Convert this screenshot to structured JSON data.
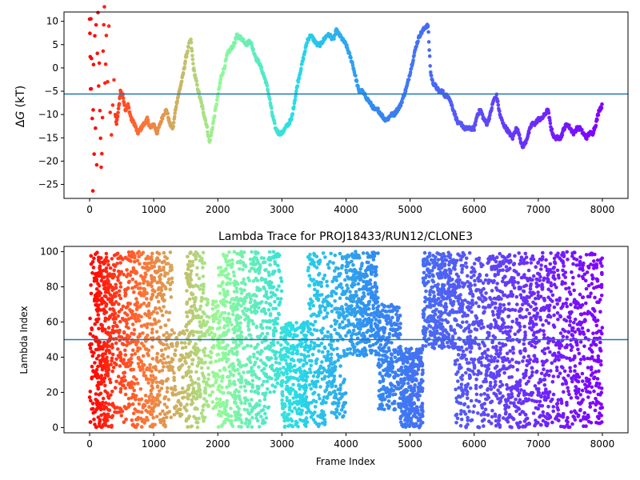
{
  "chart_data": [
    {
      "type": "scatter",
      "title": "",
      "xlabel": "",
      "ylabel": "ΔG (kT)",
      "ylabel_symbol": "Δ",
      "ylabel_var": "G",
      "ylabel_unit": " (kT)",
      "xlim": [
        -400,
        8400
      ],
      "ylim": [
        -28,
        12
      ],
      "xticks": [
        0,
        1000,
        2000,
        3000,
        4000,
        5000,
        6000,
        7000,
        8000
      ],
      "yticks": [
        -25,
        -20,
        -15,
        -10,
        -5,
        0,
        5,
        10
      ],
      "hline": {
        "y": -5.6,
        "color": "#1f77b4"
      },
      "colormap": "rainbow (reversed with frame index: red at 0, violet at 8000)",
      "series": [
        {
          "points": [
            [
              0,
              10
            ],
            [
              5,
              8
            ],
            [
              10,
              2
            ],
            [
              15,
              -6
            ],
            [
              20,
              10
            ],
            [
              25,
              -5
            ],
            [
              30,
              3
            ],
            [
              40,
              -12
            ],
            [
              50,
              -27
            ],
            [
              55,
              -10
            ],
            [
              60,
              0
            ],
            [
              70,
              -18
            ],
            [
              80,
              6
            ],
            [
              90,
              -12
            ],
            [
              100,
              9
            ],
            [
              110,
              -20
            ],
            [
              120,
              4
            ],
            [
              130,
              11
            ],
            [
              140,
              -5
            ],
            [
              150,
              0
            ],
            [
              160,
              -8
            ],
            [
              170,
              -15
            ],
            [
              180,
              -22
            ],
            [
              190,
              -18
            ],
            [
              200,
              -10
            ],
            [
              210,
              4
            ],
            [
              220,
              8
            ],
            [
              230,
              12
            ],
            [
              240,
              -3
            ],
            [
              250,
              1
            ],
            [
              260,
              6
            ],
            [
              280,
              -2
            ],
            [
              300,
              10
            ],
            [
              320,
              -9
            ],
            [
              340,
              -14
            ],
            [
              360,
              -8
            ],
            [
              380,
              -4
            ],
            [
              400,
              -10
            ],
            [
              420,
              -12
            ],
            [
              450,
              -9
            ],
            [
              480,
              -5
            ],
            [
              520,
              -6
            ],
            [
              560,
              -9
            ],
            [
              600,
              -8
            ],
            [
              650,
              -11
            ],
            [
              700,
              -12
            ],
            [
              750,
              -14
            ],
            [
              800,
              -13
            ],
            [
              850,
              -12
            ],
            [
              900,
              -11
            ],
            [
              950,
              -13
            ],
            [
              1000,
              -12
            ],
            [
              1050,
              -14
            ],
            [
              1100,
              -12
            ],
            [
              1150,
              -10
            ],
            [
              1200,
              -9
            ],
            [
              1250,
              -12
            ],
            [
              1300,
              -13
            ],
            [
              1350,
              -8
            ],
            [
              1400,
              -5
            ],
            [
              1450,
              -2
            ],
            [
              1500,
              2
            ],
            [
              1550,
              5
            ],
            [
              1580,
              6
            ],
            [
              1620,
              0
            ],
            [
              1680,
              -4
            ],
            [
              1750,
              -8
            ],
            [
              1820,
              -12
            ],
            [
              1870,
              -16
            ],
            [
              1900,
              -14
            ],
            [
              1950,
              -10
            ],
            [
              2000,
              -6
            ],
            [
              2050,
              -2
            ],
            [
              2100,
              0
            ],
            [
              2150,
              3
            ],
            [
              2200,
              4
            ],
            [
              2250,
              5
            ],
            [
              2300,
              7
            ],
            [
              2350,
              6.5
            ],
            [
              2400,
              6
            ],
            [
              2450,
              5
            ],
            [
              2500,
              6
            ],
            [
              2550,
              4
            ],
            [
              2600,
              2
            ],
            [
              2650,
              1
            ],
            [
              2700,
              -1
            ],
            [
              2750,
              -3
            ],
            [
              2800,
              -6
            ],
            [
              2850,
              -10
            ],
            [
              2900,
              -13
            ],
            [
              2950,
              -14
            ],
            [
              3000,
              -14
            ],
            [
              3050,
              -13
            ],
            [
              3100,
              -12
            ],
            [
              3150,
              -11
            ],
            [
              3200,
              -7
            ],
            [
              3250,
              -3
            ],
            [
              3300,
              0
            ],
            [
              3350,
              3
            ],
            [
              3400,
              6
            ],
            [
              3450,
              7
            ],
            [
              3500,
              6
            ],
            [
              3550,
              5
            ],
            [
              3600,
              5
            ],
            [
              3650,
              6
            ],
            [
              3700,
              7
            ],
            [
              3750,
              7
            ],
            [
              3800,
              6
            ],
            [
              3850,
              8
            ],
            [
              3900,
              7
            ],
            [
              3950,
              6
            ],
            [
              4000,
              5
            ],
            [
              4050,
              3
            ],
            [
              4100,
              1
            ],
            [
              4150,
              -2
            ],
            [
              4200,
              -5
            ],
            [
              4250,
              -5
            ],
            [
              4300,
              -6
            ],
            [
              4350,
              -7
            ],
            [
              4400,
              -8
            ],
            [
              4450,
              -9
            ],
            [
              4500,
              -9
            ],
            [
              4550,
              -10
            ],
            [
              4600,
              -11
            ],
            [
              4650,
              -11
            ],
            [
              4700,
              -10
            ],
            [
              4750,
              -10
            ],
            [
              4800,
              -9
            ],
            [
              4850,
              -8
            ],
            [
              4900,
              -6
            ],
            [
              4950,
              -4
            ],
            [
              5000,
              -1
            ],
            [
              5050,
              2
            ],
            [
              5100,
              5
            ],
            [
              5150,
              7
            ],
            [
              5200,
              8
            ],
            [
              5250,
              9
            ],
            [
              5280,
              9
            ],
            [
              5300,
              4
            ],
            [
              5320,
              -1
            ],
            [
              5350,
              -3
            ],
            [
              5400,
              -4
            ],
            [
              5450,
              -5
            ],
            [
              5500,
              -5
            ],
            [
              5550,
              -6
            ],
            [
              5600,
              -6
            ],
            [
              5650,
              -8
            ],
            [
              5700,
              -10
            ],
            [
              5750,
              -12
            ],
            [
              5800,
              -12
            ],
            [
              5850,
              -13
            ],
            [
              5900,
              -13
            ],
            [
              5950,
              -13
            ],
            [
              6000,
              -13
            ],
            [
              6050,
              -10
            ],
            [
              6100,
              -9
            ],
            [
              6150,
              -11
            ],
            [
              6200,
              -12
            ],
            [
              6250,
              -10
            ],
            [
              6300,
              -7
            ],
            [
              6350,
              -6
            ],
            [
              6400,
              -10
            ],
            [
              6450,
              -12
            ],
            [
              6500,
              -13
            ],
            [
              6550,
              -14
            ],
            [
              6600,
              -15
            ],
            [
              6650,
              -13
            ],
            [
              6700,
              -14
            ],
            [
              6750,
              -17
            ],
            [
              6800,
              -16
            ],
            [
              6850,
              -14
            ],
            [
              6900,
              -12
            ],
            [
              6950,
              -12
            ],
            [
              7000,
              -11
            ],
            [
              7050,
              -11
            ],
            [
              7100,
              -10
            ],
            [
              7150,
              -9
            ],
            [
              7200,
              -13
            ],
            [
              7250,
              -15
            ],
            [
              7300,
              -15
            ],
            [
              7350,
              -15
            ],
            [
              7400,
              -13
            ],
            [
              7450,
              -12
            ],
            [
              7500,
              -13
            ],
            [
              7550,
              -14
            ],
            [
              7600,
              -13
            ],
            [
              7650,
              -13
            ],
            [
              7700,
              -14
            ],
            [
              7750,
              -15
            ],
            [
              7800,
              -14
            ],
            [
              7850,
              -14
            ],
            [
              7900,
              -12
            ],
            [
              7950,
              -9
            ],
            [
              8000,
              -8
            ]
          ]
        }
      ]
    },
    {
      "type": "scatter",
      "title": "Lambda Trace for PROJ18433/RUN12/CLONE3",
      "xlabel": "Frame Index",
      "ylabel": "Lambda Index",
      "xlim": [
        -400,
        8400
      ],
      "ylim": [
        -3,
        103
      ],
      "xticks": [
        0,
        1000,
        2000,
        3000,
        4000,
        5000,
        6000,
        7000,
        8000
      ],
      "yticks": [
        0,
        20,
        40,
        60,
        80,
        100
      ],
      "hline": {
        "y": 50,
        "color": "#1f77b4"
      },
      "colormap": "rainbow (reversed with frame index: red at 0, violet at 8000)",
      "density_bands": [
        {
          "x_range": [
            0,
            80
          ],
          "y_range": [
            0,
            98
          ],
          "n_points": 40
        },
        {
          "x_range": [
            80,
            300
          ],
          "y_range": [
            0,
            100
          ],
          "n_points": 260
        },
        {
          "x_range": [
            300,
            1000
          ],
          "y_range": [
            0,
            100
          ],
          "n_points": 520
        },
        {
          "x_range": [
            1000,
            1300
          ],
          "y_range": [
            0,
            100
          ],
          "n_points": 200
        },
        {
          "x_range": [
            1300,
            1500
          ],
          "y_range": [
            5,
            55
          ],
          "n_points": 70
        },
        {
          "x_range": [
            1500,
            1800
          ],
          "y_range": [
            0,
            100
          ],
          "n_points": 240
        },
        {
          "x_range": [
            1800,
            2000
          ],
          "y_range": [
            10,
            75
          ],
          "n_points": 90
        },
        {
          "x_range": [
            2000,
            2350
          ],
          "y_range": [
            0,
            100
          ],
          "n_points": 300
        },
        {
          "x_range": [
            2350,
            2800
          ],
          "y_range": [
            0,
            100
          ],
          "n_points": 320
        },
        {
          "x_range": [
            2800,
            3000
          ],
          "y_range": [
            20,
            100
          ],
          "n_points": 130
        },
        {
          "x_range": [
            3000,
            3400
          ],
          "y_range": [
            0,
            60
          ],
          "n_points": 280
        },
        {
          "x_range": [
            3400,
            3700
          ],
          "y_range": [
            0,
            100
          ],
          "n_points": 200
        },
        {
          "x_range": [
            3700,
            4000
          ],
          "y_range": [
            5,
            100
          ],
          "n_points": 200
        },
        {
          "x_range": [
            4000,
            4500
          ],
          "y_range": [
            40,
            100
          ],
          "n_points": 380
        },
        {
          "x_range": [
            4500,
            4850
          ],
          "y_range": [
            10,
            70
          ],
          "n_points": 260
        },
        {
          "x_range": [
            4850,
            5200
          ],
          "y_range": [
            0,
            45
          ],
          "n_points": 330
        },
        {
          "x_range": [
            5200,
            5700
          ],
          "y_range": [
            45,
            100
          ],
          "n_points": 360
        },
        {
          "x_range": [
            5700,
            6200
          ],
          "y_range": [
            0,
            100
          ],
          "n_points": 340
        },
        {
          "x_range": [
            6200,
            6800
          ],
          "y_range": [
            0,
            100
          ],
          "n_points": 440
        },
        {
          "x_range": [
            6800,
            7300
          ],
          "y_range": [
            0,
            100
          ],
          "n_points": 320
        },
        {
          "x_range": [
            7300,
            8000
          ],
          "y_range": [
            0,
            100
          ],
          "n_points": 420
        }
      ]
    }
  ]
}
